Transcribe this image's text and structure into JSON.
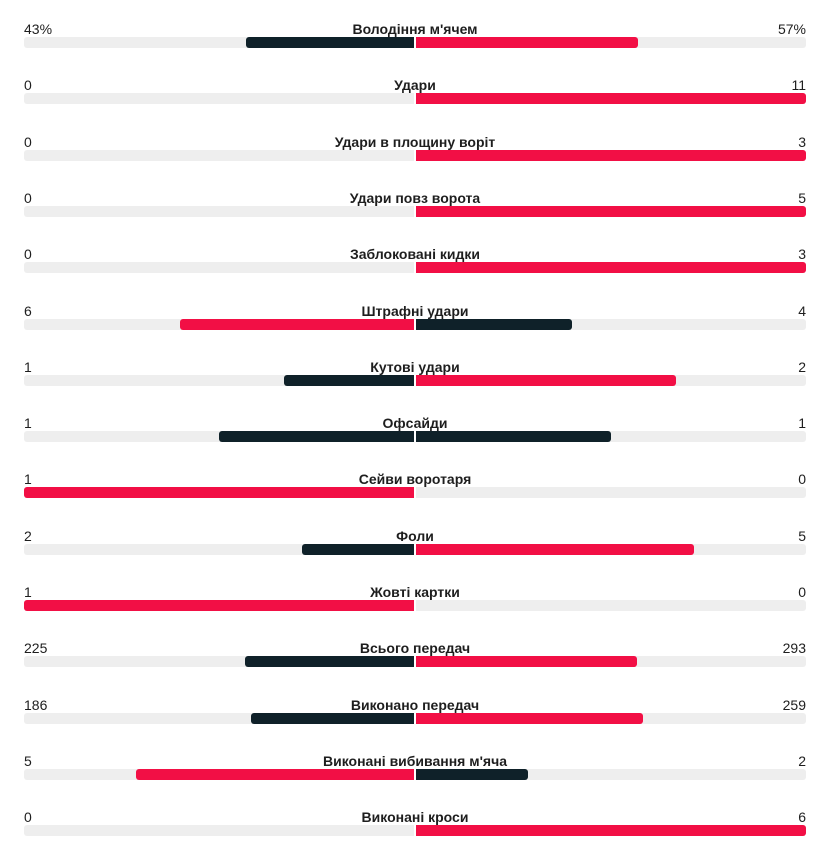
{
  "colors": {
    "leader": "#f20f45",
    "trailer": "#0f2129",
    "track": "#eeeeee"
  },
  "stats": [
    {
      "label": "Володіння м'ячем",
      "home": "43%",
      "away": "57%",
      "home_share": 0.43,
      "away_share": 0.57
    },
    {
      "label": "Удари",
      "home": "0",
      "away": "11",
      "home_share": 0,
      "away_share": 1
    },
    {
      "label": "Удари в площину воріт",
      "home": "0",
      "away": "3",
      "home_share": 0,
      "away_share": 1
    },
    {
      "label": "Удари повз ворота",
      "home": "0",
      "away": "5",
      "home_share": 0,
      "away_share": 1
    },
    {
      "label": "Заблоковані кидки",
      "home": "0",
      "away": "3",
      "home_share": 0,
      "away_share": 1
    },
    {
      "label": "Штрафні удари",
      "home": "6",
      "away": "4",
      "home_share": 0.6,
      "away_share": 0.4
    },
    {
      "label": "Кутові удари",
      "home": "1",
      "away": "2",
      "home_share": 0.333,
      "away_share": 0.667
    },
    {
      "label": "Офсайди",
      "home": "1",
      "away": "1",
      "home_share": 0.5,
      "away_share": 0.5
    },
    {
      "label": "Сейви воротаря",
      "home": "1",
      "away": "0",
      "home_share": 1,
      "away_share": 0
    },
    {
      "label": "Фоли",
      "home": "2",
      "away": "5",
      "home_share": 0.286,
      "away_share": 0.714
    },
    {
      "label": "Жовті картки",
      "home": "1",
      "away": "0",
      "home_share": 1,
      "away_share": 0
    },
    {
      "label": "Всього передач",
      "home": "225",
      "away": "293",
      "home_share": 0.434,
      "away_share": 0.566
    },
    {
      "label": "Виконано передач",
      "home": "186",
      "away": "259",
      "home_share": 0.418,
      "away_share": 0.582
    },
    {
      "label": "Виконані вибивання м'яча",
      "home": "5",
      "away": "2",
      "home_share": 0.714,
      "away_share": 0.286
    },
    {
      "label": "Виконані кроси",
      "home": "0",
      "away": "6",
      "home_share": 0,
      "away_share": 1
    }
  ]
}
